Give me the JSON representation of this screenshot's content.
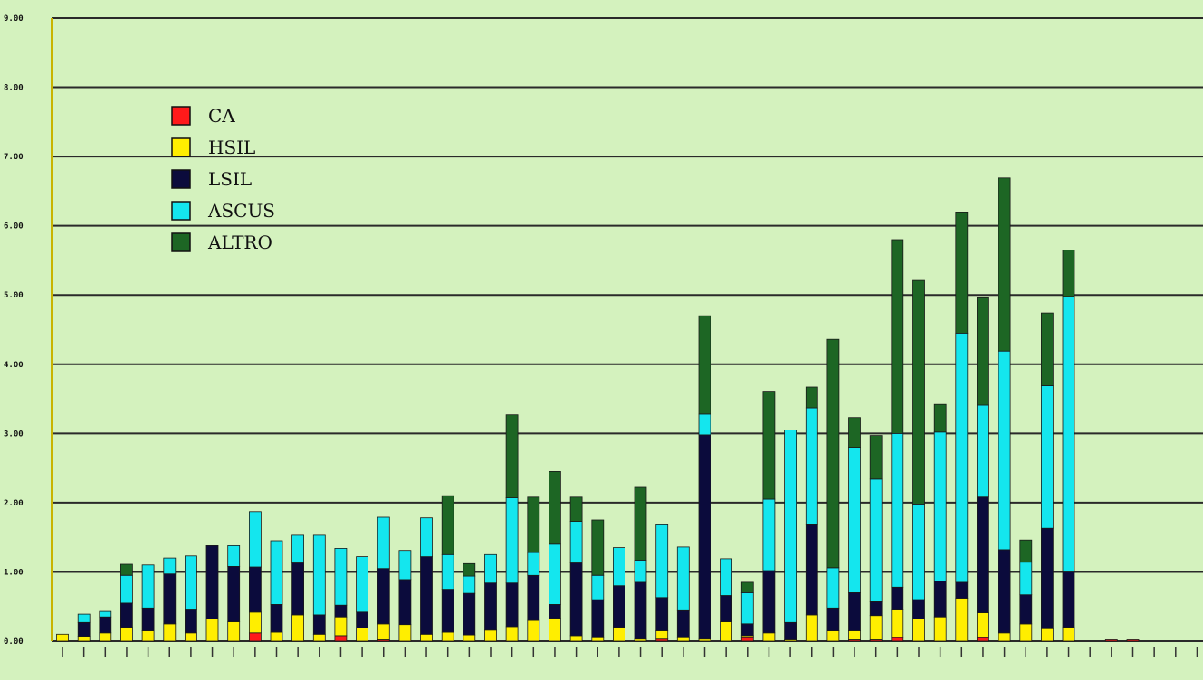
{
  "chart_data": {
    "type": "bar",
    "stacked": true,
    "ylim": [
      0,
      9
    ],
    "yticks": [
      "0.00",
      "1.00",
      "2.00",
      "3.00",
      "4.00",
      "5.00",
      "6.00",
      "7.00",
      "8.00",
      "9.00"
    ],
    "grid": true,
    "legend_position": "top-left",
    "colors": {
      "CA": "#ff1a1a",
      "HSIL": "#ffee00",
      "LSIL": "#0b0b3c",
      "ASCUS": "#14e6ee",
      "ALTRO": "#1d6624"
    },
    "series": [
      {
        "name": "CA",
        "values": [
          0,
          0,
          0,
          0,
          0,
          0,
          0,
          0,
          0,
          0.12,
          0,
          0,
          0,
          0.08,
          0,
          0.02,
          0,
          0,
          0,
          0,
          0,
          0,
          0,
          0,
          0,
          0,
          0,
          0,
          0.03,
          0,
          0,
          0,
          0.05,
          0,
          0,
          0,
          0,
          0.02,
          0.02,
          0.05,
          0,
          0,
          0,
          0.05,
          0,
          0,
          0,
          0,
          0,
          0.02,
          0.02,
          0,
          0,
          0,
          0
        ]
      },
      {
        "name": "HSIL",
        "values": [
          0.1,
          0.07,
          0.12,
          0.2,
          0.15,
          0.25,
          0.12,
          0.32,
          0.28,
          0.3,
          0.13,
          0.38,
          0.1,
          0.27,
          0.19,
          0.23,
          0.24,
          0.1,
          0.13,
          0.09,
          0.16,
          0.21,
          0.3,
          0.33,
          0.08,
          0.05,
          0.2,
          0.03,
          0.12,
          0.05,
          0.03,
          0.28,
          0.03,
          0.12,
          0.02,
          0.38,
          0.15,
          0.13,
          0.35,
          0.4,
          0.32,
          0.35,
          0.62,
          0.36,
          0.12,
          0.25,
          0.18,
          0.2,
          0,
          0,
          0,
          0,
          0,
          0,
          0
        ]
      },
      {
        "name": "LSIL",
        "values": [
          0,
          0.2,
          0.23,
          0.35,
          0.33,
          0.72,
          0.33,
          1.06,
          0.8,
          0.65,
          0.4,
          0.75,
          0.28,
          0.17,
          0.23,
          0.8,
          0.65,
          1.12,
          0.62,
          0.6,
          0.68,
          0.63,
          0.65,
          0.2,
          1.05,
          0.55,
          0.6,
          0.82,
          0.48,
          0.39,
          2.95,
          0.38,
          0.17,
          0.9,
          0.25,
          1.3,
          0.33,
          0.55,
          0.2,
          0.33,
          0.28,
          0.52,
          0.23,
          1.67,
          1.2,
          0.42,
          1.45,
          0.8,
          0,
          0,
          0,
          0,
          0,
          0,
          0
        ]
      },
      {
        "name": "ASCUS",
        "values": [
          0,
          0.12,
          0.08,
          0.4,
          0.62,
          0.23,
          0.78,
          0,
          0.3,
          0.8,
          0.92,
          0.4,
          1.15,
          0.82,
          0.8,
          0.74,
          0.42,
          0.56,
          0.5,
          0.25,
          0.41,
          1.23,
          0.33,
          0.87,
          0.6,
          0.35,
          0.55,
          0.32,
          1.05,
          0.92,
          0.3,
          0.53,
          0.45,
          1.03,
          2.78,
          1.69,
          0.58,
          2.1,
          1.77,
          2.22,
          1.38,
          2.15,
          3.6,
          1.33,
          2.87,
          0.47,
          2.06,
          3.98,
          0,
          0,
          0,
          0,
          0,
          0,
          0
        ]
      },
      {
        "name": "ALTRO",
        "values": [
          0,
          0,
          0,
          0.16,
          0,
          0,
          0,
          0,
          0,
          0,
          0,
          0,
          0,
          0,
          0,
          0,
          0,
          0,
          0.85,
          0.18,
          0,
          1.2,
          0.8,
          1.05,
          0.35,
          0.8,
          0,
          1.05,
          0,
          0,
          1.42,
          0,
          0.15,
          1.56,
          0,
          0.3,
          3.3,
          0.43,
          0.63,
          2.8,
          3.23,
          0.4,
          1.75,
          1.55,
          2.5,
          0.32,
          1.05,
          0.67,
          0,
          0,
          0,
          0,
          0,
          0,
          0
        ]
      }
    ]
  }
}
